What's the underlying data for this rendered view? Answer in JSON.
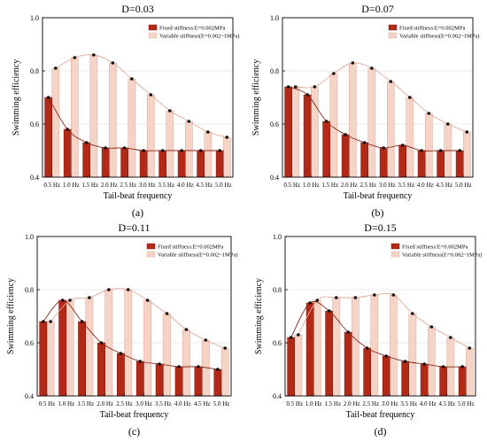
{
  "figure": {
    "colors": {
      "fixed": "#b22a17",
      "fixed_dark": "#7a1608",
      "fixed_line": "#8b2a1a",
      "variable": "#f5d3c6",
      "variable_stroke": "#d9a898",
      "variable_line": "#e3a997"
    }
  },
  "chart_data": [
    {
      "type": "bar",
      "title": "D=0.03",
      "panel_label": "(a)",
      "xlabel": "Tail-beat frequency",
      "ylabel": "Swimming efficiency",
      "ylim": [
        0.4,
        1.0
      ],
      "yticks": [
        "0.4",
        "0.6",
        "0.8",
        "1.0"
      ],
      "grid": true,
      "legend_position": "top-right",
      "categories": [
        "0.5 Hz",
        "1.0 Hz",
        "1.5 Hz",
        "2.0 Hz",
        "2.5 Hz",
        "3.0 Hz",
        "3.5 Hz",
        "4.0 Hz",
        "4.5 Hz",
        "5.0 Hz"
      ],
      "series": [
        {
          "name": "Fixed stiffness:E=0.002MPa",
          "values": [
            0.7,
            0.58,
            0.53,
            0.51,
            0.51,
            0.5,
            0.5,
            0.5,
            0.5,
            0.5
          ]
        },
        {
          "name": "Variable stiffness(E=0.002~1MPa)",
          "values": [
            0.81,
            0.85,
            0.86,
            0.83,
            0.77,
            0.71,
            0.65,
            0.61,
            0.57,
            0.55
          ]
        }
      ]
    },
    {
      "type": "bar",
      "title": "D=0.07",
      "panel_label": "(b)",
      "xlabel": "Tail-beat frequency",
      "ylabel": "Swimming efficiency",
      "ylim": [
        0.4,
        1.0
      ],
      "yticks": [
        "0.4",
        "0.6",
        "0.8",
        "1.0"
      ],
      "grid": true,
      "legend_position": "top-right",
      "categories": [
        "0.5 Hz",
        "1.0 Hz",
        "1.5 Hz",
        "2.0 Hz",
        "2.5 Hz",
        "3.0 Hz",
        "3.5 Hz",
        "4.0 Hz",
        "4.5 Hz",
        "5.0 Hz"
      ],
      "series": [
        {
          "name": "Fixed stiffness:E=0.002MPa",
          "values": [
            0.74,
            0.71,
            0.61,
            0.56,
            0.53,
            0.51,
            0.52,
            0.5,
            0.5,
            0.5
          ]
        },
        {
          "name": "Variable stiffness(E=0.002~1MPa)",
          "values": [
            0.74,
            0.74,
            0.79,
            0.83,
            0.81,
            0.76,
            0.7,
            0.64,
            0.6,
            0.57
          ]
        }
      ]
    },
    {
      "type": "bar",
      "title": "D=0.11",
      "panel_label": "(c)",
      "xlabel": "Tail-beat frequency",
      "ylabel": "Swimming efficiency",
      "ylim": [
        0.4,
        1.0
      ],
      "yticks": [
        "0.4",
        "0.6",
        "0.8",
        "1.0"
      ],
      "grid": true,
      "legend_position": "top-right",
      "categories": [
        "0.5 Hz",
        "1.0 Hz",
        "1.5 Hz",
        "2.0 Hz",
        "2.5 Hz",
        "3.0 Hz",
        "3.5 Hz",
        "4.0 Hz",
        "4.5 Hz",
        "5.0 Hz"
      ],
      "series": [
        {
          "name": "Fixed stiffness:E=0.002MPa",
          "values": [
            0.68,
            0.76,
            0.68,
            0.6,
            0.56,
            0.53,
            0.52,
            0.51,
            0.51,
            0.5
          ]
        },
        {
          "name": "Variable stiffness(E=0.002~1MPa)",
          "values": [
            0.68,
            0.76,
            0.77,
            0.8,
            0.8,
            0.76,
            0.71,
            0.65,
            0.61,
            0.58
          ]
        }
      ]
    },
    {
      "type": "bar",
      "title": "D=0.15",
      "panel_label": "(d)",
      "xlabel": "Tail-beat frequency",
      "ylabel": "Swimming efficiency",
      "ylim": [
        0.4,
        1.0
      ],
      "yticks": [
        "0.4",
        "0.6",
        "0.8",
        "1.0"
      ],
      "grid": true,
      "legend_position": "top-right",
      "categories": [
        "0.5 Hz",
        "1.0 Hz",
        "1.5 Hz",
        "2.0 Hz",
        "2.5 Hz",
        "3.0 Hz",
        "3.5 Hz",
        "4.0 Hz",
        "4.5 Hz",
        "5.0 Hz"
      ],
      "series": [
        {
          "name": "Fixed stiffness:E=0.002MPa",
          "values": [
            0.62,
            0.75,
            0.72,
            0.64,
            0.58,
            0.55,
            0.53,
            0.52,
            0.51,
            0.51
          ]
        },
        {
          "name": "Variable stiffness(E=0.002~1MPa)",
          "values": [
            0.63,
            0.76,
            0.77,
            0.77,
            0.78,
            0.78,
            0.71,
            0.66,
            0.62,
            0.58
          ]
        }
      ]
    }
  ]
}
